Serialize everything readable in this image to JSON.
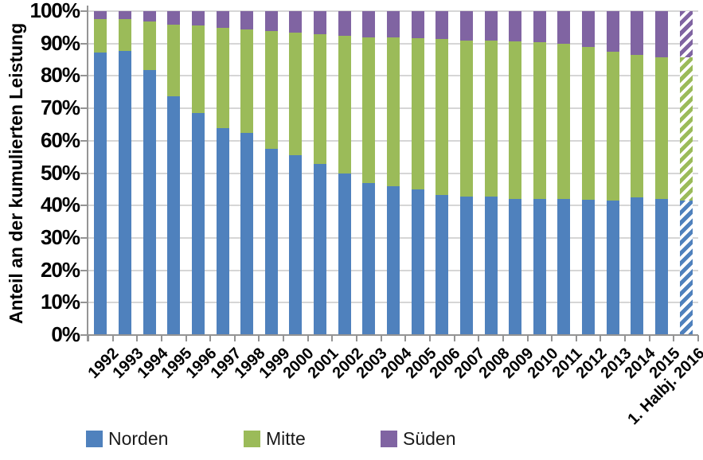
{
  "chart_data": {
    "type": "bar",
    "stacked": true,
    "stacked_100_percent": true,
    "title": "",
    "xlabel": "",
    "ylabel": "Anteil an der kumulierten Leistung",
    "ylim": [
      0,
      100
    ],
    "grid": "horizontal",
    "legend_position": "bottom",
    "last_bar_hatched": true,
    "ytick_labels": [
      "0%",
      "10%",
      "20%",
      "30%",
      "40%",
      "50%",
      "60%",
      "70%",
      "80%",
      "90%",
      "100%"
    ],
    "categories": [
      "1992",
      "1993",
      "1994",
      "1995",
      "1996",
      "1997",
      "1998",
      "1999",
      "2000",
      "2001",
      "2002",
      "2003",
      "2004",
      "2005",
      "2006",
      "2007",
      "2008",
      "2009",
      "2010",
      "2011",
      "2012",
      "2013",
      "2014",
      "2015",
      "1. Halbj. 2016"
    ],
    "series": [
      {
        "name": "Norden",
        "color": "#4F81BD",
        "values": [
          87.3,
          87.6,
          81.7,
          73.6,
          68.6,
          64.0,
          62.3,
          57.4,
          55.6,
          52.8,
          49.8,
          46.9,
          45.9,
          44.9,
          43.3,
          42.7,
          42.7,
          42.1,
          42.1,
          42.0,
          41.7,
          41.5,
          42.4,
          42.1,
          41.5
        ]
      },
      {
        "name": "Mitte",
        "color": "#9BBB59",
        "values": [
          10.3,
          10.0,
          15.2,
          22.3,
          27.0,
          30.9,
          32.0,
          36.4,
          37.7,
          40.1,
          42.6,
          45.1,
          46.1,
          46.8,
          48.2,
          48.2,
          48.1,
          48.5,
          48.2,
          48.0,
          47.2,
          46.0,
          44.0,
          43.7,
          44.3
        ]
      },
      {
        "name": "Süden",
        "color": "#8064A2",
        "values": [
          2.4,
          2.4,
          3.1,
          4.1,
          4.4,
          5.1,
          5.7,
          6.2,
          6.7,
          7.1,
          7.6,
          8.0,
          8.0,
          8.3,
          8.5,
          9.1,
          9.2,
          9.4,
          9.7,
          10.0,
          11.1,
          12.5,
          13.6,
          14.2,
          14.2
        ]
      }
    ]
  },
  "colors": {
    "gridline": "#d6d6d6",
    "axis": "#949494",
    "hatch_stripe": "#ffffff"
  }
}
